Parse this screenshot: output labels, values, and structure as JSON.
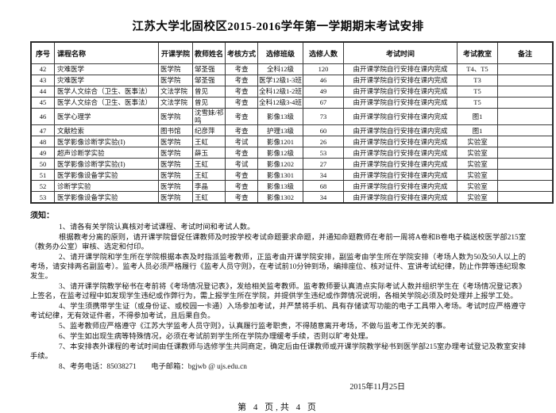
{
  "title": "江苏大学北固校区2015-2016学年第一学期期末考试安排",
  "table": {
    "columns": [
      "序号",
      "课程名称",
      "开课学院",
      "教师姓名",
      "考核方式",
      "选修班级",
      "选修人数",
      "考试时间",
      "考试教室",
      "备注"
    ],
    "rows": [
      [
        "42",
        "灾难医学",
        "医学院",
        "邹圣强",
        "考查",
        "全科12级",
        "120",
        "由开课学院自行安排在课内完成",
        "T4、T5",
        ""
      ],
      [
        "43",
        "灾难医学",
        "医学院",
        "邹圣强",
        "考查",
        "医学12级1-3班",
        "46",
        "由开课学院自行安排在课内完成",
        "T3",
        ""
      ],
      [
        "44",
        "医学人文综合（卫生、医事法）",
        "文法学院",
        "曾见",
        "考查",
        "全科12级1-2班",
        "49",
        "由开课学院自行安排在课内完成",
        "T5",
        ""
      ],
      [
        "45",
        "医学人文综合（卫生、医事法）",
        "文法学院",
        "曾见",
        "考查",
        "全科12级3-4班",
        "67",
        "由开课学院自行安排在课内完成",
        "T5",
        ""
      ],
      [
        "46",
        "医学心理学",
        "医学院",
        "沈雪妹/祁鸣",
        "考查",
        "影像13级",
        "73",
        "由开课学院自行安排在课内完成",
        "图1",
        ""
      ],
      [
        "47",
        "文献检索",
        "图书馆",
        "纪彦萍",
        "考查",
        "护理13级",
        "60",
        "由开课学院自行安排在课内完成",
        "图1",
        ""
      ],
      [
        "48",
        "医学影像诊断学实验(Ⅰ)",
        "医学院",
        "王虹",
        "考试",
        "影像1201",
        "26",
        "由开课学院自行安排在课内完成",
        "实验室",
        ""
      ],
      [
        "49",
        "超声诊断学实验",
        "医学院",
        "薛玉",
        "考查",
        "影像12级",
        "53",
        "由开课学院自行安排在课内完成",
        "实验室",
        ""
      ],
      [
        "50",
        "医学影像诊断学实验(Ⅰ)",
        "医学院",
        "王虹",
        "考试",
        "影像1202",
        "27",
        "由开课学院自行安排在课内完成",
        "实验室",
        ""
      ],
      [
        "51",
        "医学影像设备学实验",
        "医学院",
        "王虹",
        "考查",
        "影像1301",
        "34",
        "由开课学院自行安排在课内完成",
        "实验室",
        ""
      ],
      [
        "52",
        "诊断学实验",
        "医学院",
        "李晶",
        "考查",
        "影像13级",
        "68",
        "由开课学院自行安排在课内完成",
        "实验室",
        ""
      ],
      [
        "53",
        "医学影像设备学实验",
        "医学院",
        "王虹",
        "考查",
        "影像1302",
        "34",
        "由开课学院自行安排在课内完成",
        "实验室",
        ""
      ]
    ]
  },
  "notes": {
    "heading": "须知：",
    "items": [
      "1、请各有关学院认真核对考试课程、考试时间和考试人数。",
      "根据教考分离的原则，请开课学院督促任课教师及时按学校考试命题要求命题，并通知命题教师在考前一周将A卷和B卷电子稿送校医学部215室（教务办公室）审核、选定和付印。",
      "2、请开课学院和学生所在学院根据本表及时指派监考教师，正监考由开课学院安排，副监考由学生所在学院安排（考场人数为50及50人以上的考场，请安排两名副监考）。监考人员必须严格履行《监考人员守则》，在考试前10分钟到场，编排座位、核对证件、宣讲考试纪律，防止作弊等违纪现象发生。",
      "3、请开课学院教学秘书在考前将《考场情况登记表》，发给相关监考教师。监考教师要认真清点实际考试人数并组织学生在《考场情况登记表》上签名，在监考过程中如发现学生违纪或作弊行为，需上报学生所在学院，并提供学生违纪或作弊情况说明，各相关学院必须及时处理并上报学工处。",
      "4、学生须携带学生证（或身份证、或校园一卡通）入场参加考试，并严禁将手机、具有存储读写功能的电子工具带入考场。考试时应严格遵守考试纪律，无有效证件者，不得参加考试，且后果自负。",
      "5、监考教师应严格遵守《江苏大学监考人员守则》，认真履行监考职责，不得随意离开考场，不做与监考工作无关的事。",
      "6、学生如出现生病等特殊情况，必须在考试前到学生所在学院办理缓考手续，否则以旷考处理。",
      "7、本安排表外课程的考试时间由任课教师与选修学生共同商定，确定后由任课教师或开课学院教学秘书到医学部215室办理考试登记及教室安排手续。",
      "8、考务电话：85038271　　电子邮箱：bgjwb @ ujs.edu.cn"
    ]
  },
  "date": "2015年11月25日",
  "footer": "第 4 页,共 4 页"
}
